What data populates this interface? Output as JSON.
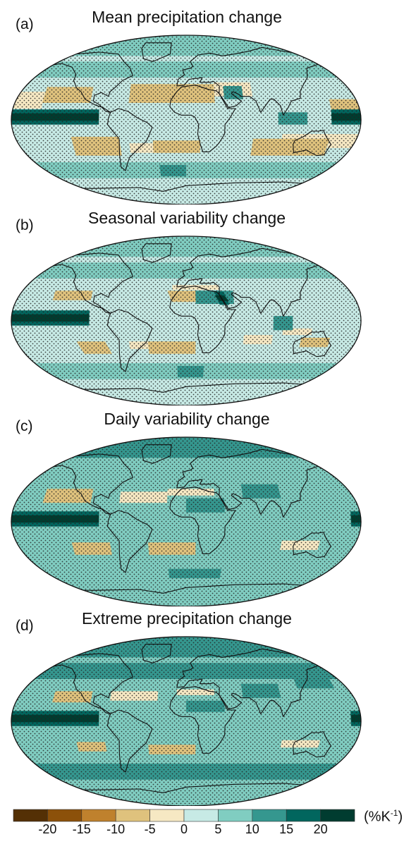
{
  "panels": [
    {
      "letter": "(a)",
      "title": "Mean precipitation change"
    },
    {
      "letter": "(b)",
      "title": "Seasonal variability change"
    },
    {
      "letter": "(c)",
      "title": "Daily variability change"
    },
    {
      "letter": "(d)",
      "title": "Extreme precipitation change"
    }
  ],
  "colorbar": {
    "colors": [
      "#543005",
      "#8c510a",
      "#bf812d",
      "#dfc27d",
      "#f6e8c3",
      "#c7eae5",
      "#80cdc1",
      "#35978f",
      "#01665e",
      "#003c30"
    ],
    "tick_labels": [
      "-20",
      "-15",
      "-10",
      "-5",
      "0",
      "5",
      "10",
      "15",
      "20"
    ],
    "unit_text": "(%K",
    "unit_sup": "-1",
    "unit_close": ")"
  }
}
